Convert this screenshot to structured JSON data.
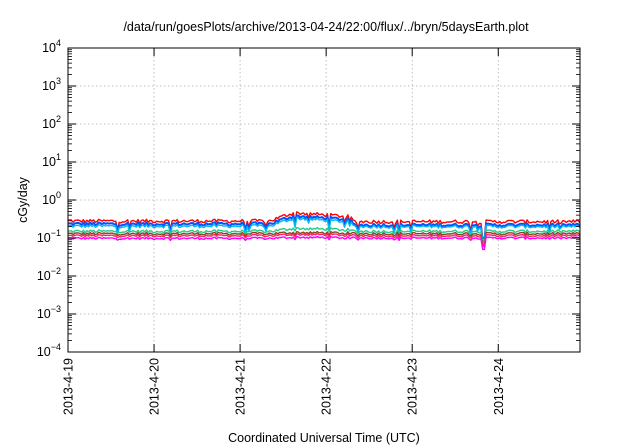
{
  "chart_data": {
    "type": "line",
    "title": "/data/run/goesPlots/archive/2013-04-24/22:00/flux/../bryn/5daysEarth.plot",
    "xlabel": "Coordinated Universal Time (UTC)",
    "ylabel": "cGy/day",
    "x_range_days": [
      0,
      5.95
    ],
    "x_tick_labels": [
      "2013-4-19",
      "2013-4-20",
      "2013-4-21",
      "2013-4-22",
      "2013-4-23",
      "2013-4-24"
    ],
    "y_scale": "log",
    "y_range": [
      0.0001,
      10000
    ],
    "y_tick_exponents": [
      -4,
      -3,
      -2,
      -1,
      0,
      1,
      2,
      3,
      4
    ],
    "y_tick_base": "10",
    "grid": true,
    "series": [
      {
        "color": "#ff0000",
        "base": 0.28,
        "base_after_event": 0.27,
        "enhancement": {
          "start": 2.35,
          "end": 3.3,
          "peak": 0.46
        },
        "dip": {
          "at": 4.83,
          "value": 0.1
        }
      },
      {
        "color": "#0055ff",
        "base": 0.235,
        "base_after_event": 0.22,
        "enhancement": {
          "start": 2.35,
          "end": 3.3,
          "peak": 0.38
        },
        "dip": {
          "at": 4.83,
          "value": 0.07
        }
      },
      {
        "color": "#00bbee",
        "base": 0.205,
        "base_after_event": 0.2,
        "enhancement": {
          "start": 2.35,
          "end": 3.3,
          "peak": 0.33
        },
        "dip": {
          "at": 4.83,
          "value": 0.075
        }
      },
      {
        "color": "#22cc88",
        "base": 0.15,
        "base_after_event": 0.15,
        "enhancement": {
          "start": 2.35,
          "end": 3.3,
          "peak": 0.18
        },
        "dip": {
          "at": 4.83,
          "value": 0.07
        }
      },
      {
        "color": "#884422",
        "base": 0.13,
        "base_after_event": 0.13,
        "enhancement": {
          "start": 2.35,
          "end": 3.3,
          "peak": 0.14
        },
        "dip": {
          "at": 4.83,
          "value": 0.065
        }
      },
      {
        "color": "#ff2266",
        "base": 0.115,
        "base_after_event": 0.115,
        "enhancement": {
          "start": 2.35,
          "end": 3.3,
          "peak": 0.125
        },
        "dip": {
          "at": 4.83,
          "value": 0.06
        }
      },
      {
        "color": "#ff00ff",
        "base": 0.098,
        "base_after_event": 0.1,
        "enhancement": {
          "start": 2.35,
          "end": 3.3,
          "peak": 0.105
        },
        "dip": {
          "at": 4.83,
          "value": 0.05
        }
      }
    ]
  }
}
